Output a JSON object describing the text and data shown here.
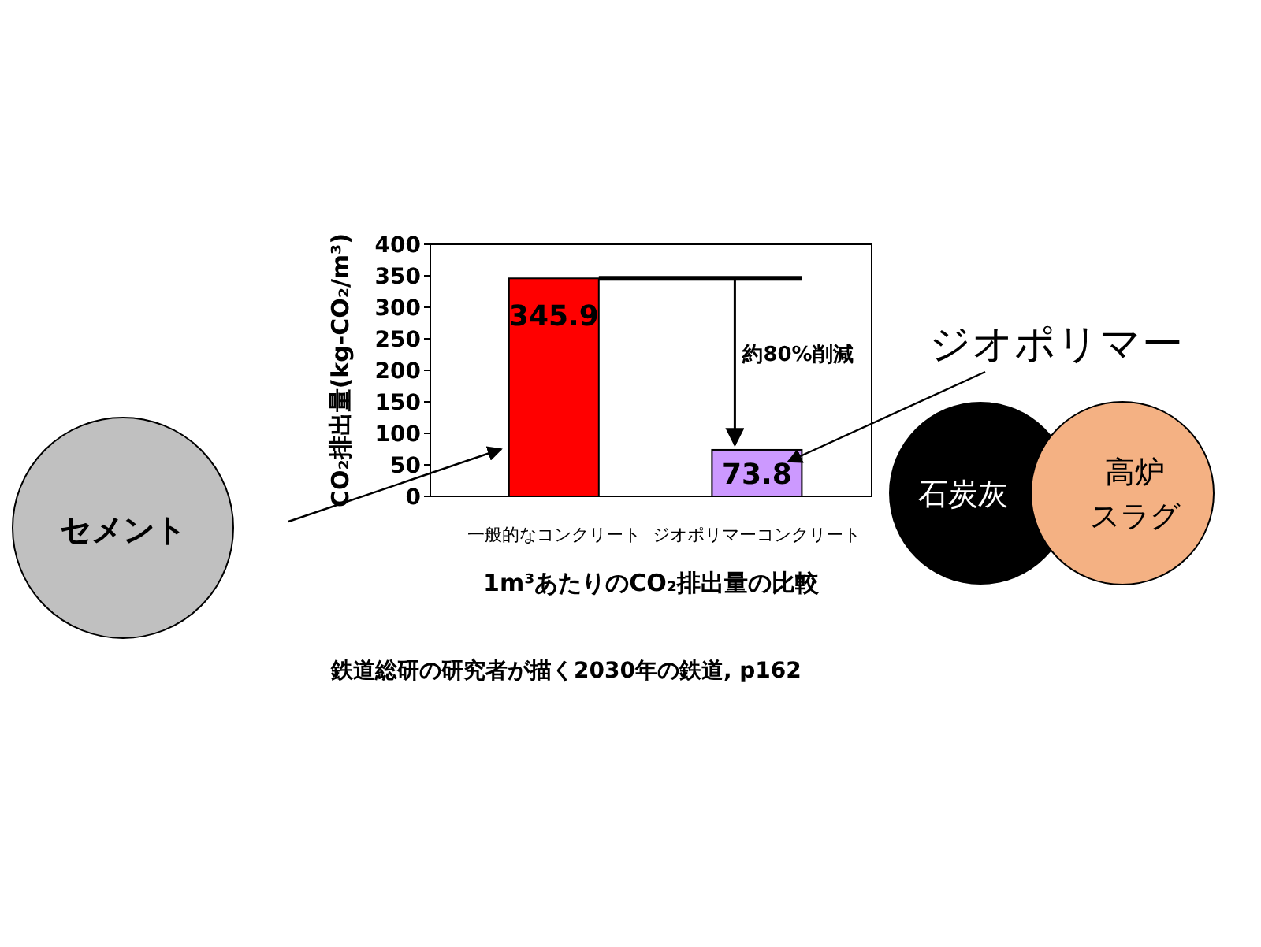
{
  "chart_data": {
    "type": "bar",
    "xlabel": "1m³あたりのCO₂排出量の比較",
    "ylabel": "CO₂排出量(kg-CO₂/m³)",
    "categories": [
      "一般的なコンクリート",
      "ジオポリマーコンクリート"
    ],
    "values": [
      345.9,
      73.8
    ],
    "colors": [
      "#ff0000",
      "#cc99ff"
    ],
    "ylim": [
      0,
      400
    ],
    "yticks": [
      0,
      50,
      100,
      150,
      200,
      250,
      300,
      350,
      400
    ],
    "grid": false,
    "data_labels": true,
    "annotations": [
      "約80%削減",
      "セメント",
      "ジオポリマー",
      "石炭灰",
      "高炉",
      "スラグ",
      "鉄道総研の研究者が描く2030年の鉄道, p162"
    ]
  }
}
